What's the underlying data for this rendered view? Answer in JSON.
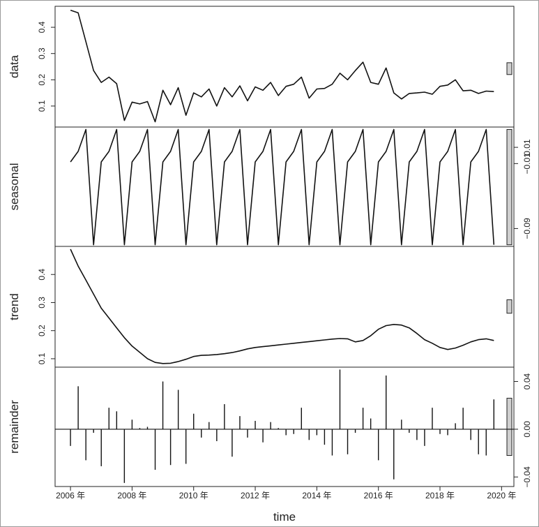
{
  "chart_data": {
    "type": "line",
    "subtype": "stl-decomposition",
    "xlabel": "time",
    "x_start": 2006.0,
    "x_step": 0.25,
    "xlim": [
      2005.5,
      2020.4
    ],
    "x_ticks": [
      2006,
      2008,
      2010,
      2012,
      2014,
      2016,
      2018,
      2020
    ],
    "x_tick_labels": [
      "2006 年",
      "2008 年",
      "2010 年",
      "2012 年",
      "2014 年",
      "2016 年",
      "2018 年",
      "2020 年"
    ],
    "panels": [
      {
        "name": "data",
        "label": "data",
        "style": "line",
        "ylim": [
          0.02,
          0.48
        ],
        "y_ticks": [
          0.1,
          0.2,
          0.3,
          0.4
        ],
        "y_tick_labels": [
          "0.1",
          "0.2",
          "0.3",
          "0.4"
        ],
        "tick_side": "left",
        "scale_bar": [
          0.22,
          0.265
        ],
        "values": [
          0.465,
          0.455,
          0.345,
          0.235,
          0.19,
          0.21,
          0.185,
          0.045,
          0.115,
          0.108,
          0.117,
          0.04,
          0.16,
          0.105,
          0.17,
          0.065,
          0.15,
          0.135,
          0.165,
          0.1,
          0.17,
          0.135,
          0.177,
          0.12,
          0.173,
          0.16,
          0.19,
          0.14,
          0.175,
          0.183,
          0.21,
          0.13,
          0.165,
          0.167,
          0.183,
          0.225,
          0.2,
          0.235,
          0.267,
          0.19,
          0.183,
          0.245,
          0.15,
          0.127,
          0.148,
          0.15,
          0.153,
          0.145,
          0.175,
          0.18,
          0.2,
          0.158,
          0.16,
          0.148,
          0.157,
          0.155
        ]
      },
      {
        "name": "seasonal",
        "label": "seasonal",
        "style": "line",
        "ylim": [
          -0.112,
          0.035
        ],
        "y_ticks": [
          0.01,
          -0.01,
          -0.09
        ],
        "y_tick_labels": [
          "0.01",
          "−0.01",
          "−0.09"
        ],
        "tick_side": "right",
        "scale_bar": [
          -0.11,
          0.032
        ],
        "pattern": [
          -0.008,
          0.005,
          0.032,
          -0.11
        ],
        "values": []
      },
      {
        "name": "trend",
        "label": "trend",
        "style": "line",
        "ylim": [
          0.07,
          0.5
        ],
        "y_ticks": [
          0.1,
          0.2,
          0.3,
          0.4
        ],
        "y_tick_labels": [
          "0.1",
          "0.2",
          "0.3",
          "0.4"
        ],
        "tick_side": "left",
        "scale_bar": [
          0.262,
          0.31
        ],
        "values": [
          0.49,
          0.43,
          0.38,
          0.33,
          0.28,
          0.245,
          0.21,
          0.175,
          0.145,
          0.123,
          0.1,
          0.087,
          0.083,
          0.084,
          0.09,
          0.098,
          0.108,
          0.112,
          0.113,
          0.115,
          0.118,
          0.122,
          0.128,
          0.135,
          0.14,
          0.143,
          0.146,
          0.149,
          0.152,
          0.155,
          0.158,
          0.161,
          0.164,
          0.167,
          0.17,
          0.172,
          0.171,
          0.16,
          0.165,
          0.182,
          0.205,
          0.218,
          0.222,
          0.22,
          0.21,
          0.19,
          0.168,
          0.155,
          0.14,
          0.133,
          0.138,
          0.148,
          0.16,
          0.168,
          0.171,
          0.165
        ]
      },
      {
        "name": "remainder",
        "label": "remainder",
        "style": "spikes",
        "ylim": [
          -0.048,
          0.052
        ],
        "y_ticks": [
          0.04,
          0.0,
          -0.04
        ],
        "y_tick_labels": [
          "0.04",
          "0.00",
          "−0.04"
        ],
        "tick_side": "right",
        "scale_bar": [
          -0.022,
          0.026
        ],
        "values": [
          -0.014,
          0.036,
          -0.026,
          -0.003,
          -0.031,
          0.018,
          0.015,
          -0.045,
          0.008,
          0.001,
          0.002,
          -0.034,
          0.04,
          -0.03,
          0.033,
          -0.029,
          0.013,
          -0.007,
          0.006,
          -0.01,
          0.021,
          -0.023,
          0.011,
          -0.007,
          0.007,
          -0.011,
          0.006,
          0.001,
          -0.005,
          -0.004,
          0.018,
          -0.009,
          -0.005,
          -0.013,
          -0.022,
          0.05,
          -0.021,
          -0.003,
          0.018,
          0.009,
          -0.026,
          0.045,
          -0.042,
          0.008,
          -0.003,
          -0.009,
          -0.014,
          0.018,
          -0.004,
          -0.005,
          0.005,
          0.018,
          -0.009,
          -0.021,
          -0.022,
          0.025
        ]
      }
    ]
  }
}
